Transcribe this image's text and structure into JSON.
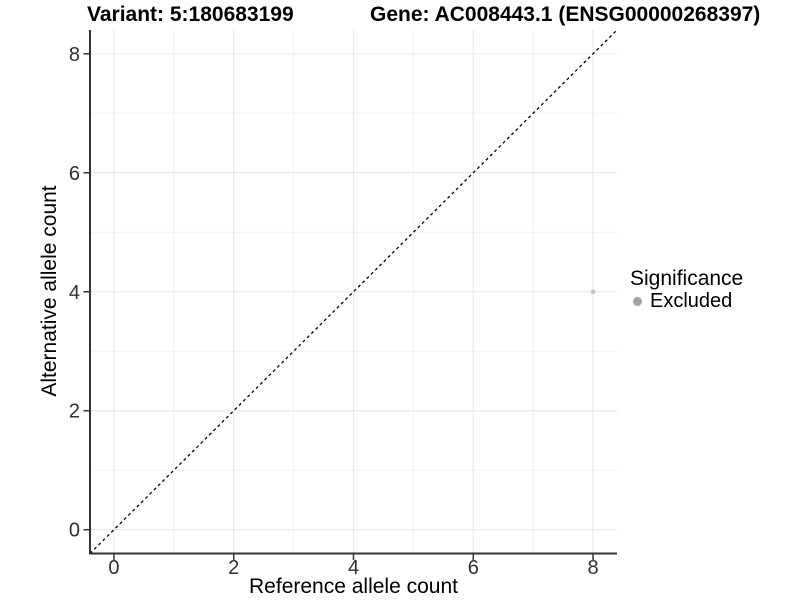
{
  "chart_data": {
    "type": "scatter",
    "title_left": "Variant: 5:180683199",
    "title_right": "Gene: AC008443.1 (ENSG00000268397)",
    "xlabel": "Reference allele count",
    "ylabel": "Alternative allele count",
    "xlim": [
      -0.4,
      8.4
    ],
    "ylim": [
      -0.4,
      8.4
    ],
    "x_ticks": [
      0,
      2,
      4,
      6,
      8
    ],
    "y_ticks": [
      0,
      2,
      4,
      6,
      8
    ],
    "grid_minor_x": [
      1,
      3,
      5,
      7
    ],
    "grid_minor_y": [
      1,
      3,
      5,
      7
    ],
    "grid": "on",
    "points": [
      {
        "x": 8,
        "y": 4,
        "series": "Excluded",
        "color": "#c2c2c2",
        "radius": 2.3
      }
    ],
    "identity_line": {
      "from": [
        -0.4,
        -0.4
      ],
      "to": [
        8.4,
        8.4
      ],
      "style": "dashed",
      "color": "#000000"
    },
    "legend": {
      "title": "Significance",
      "position": "right",
      "items": [
        {
          "label": "Excluded",
          "color": "#a3a3a3"
        }
      ]
    },
    "colors": {
      "grid_major": "#e8e8e8",
      "grid_minor": "#f2f2f2",
      "axis": "#333333",
      "tick_text": "#303030",
      "title": "#000000"
    }
  }
}
